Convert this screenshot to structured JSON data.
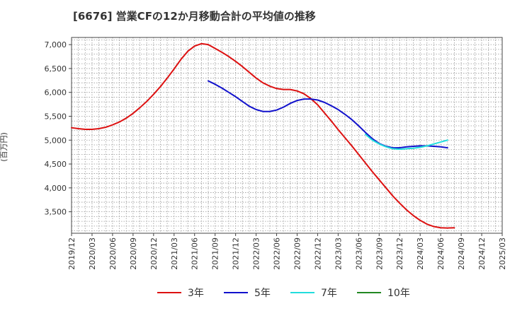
{
  "title": "[6676]  営業CFの12か月移動合計の平均値の推移",
  "y_unit": "(百万円)",
  "chart_data": {
    "type": "line",
    "title": "[6676]  営業CFの12か月移動合計の平均値の推移",
    "ylabel": "(百万円)",
    "xlabel": "",
    "ylim": [
      3050,
      7150
    ],
    "yticks": [
      3500,
      4000,
      4500,
      5000,
      5500,
      6000,
      6500,
      7000
    ],
    "ytick_labels": [
      "3,500",
      "4,000",
      "4,500",
      "5,000",
      "5,500",
      "6,000",
      "6,500",
      "7,000"
    ],
    "xticks": [
      "2019/12",
      "2020/03",
      "2020/06",
      "2020/09",
      "2020/12",
      "2021/03",
      "2021/06",
      "2021/09",
      "2021/12",
      "2022/03",
      "2022/06",
      "2022/09",
      "2022/12",
      "2023/03",
      "2023/06",
      "2023/09",
      "2023/12",
      "2024/03",
      "2024/06",
      "2024/09",
      "2024/12",
      "2025/03"
    ],
    "grid": true,
    "legend_position": "bottom",
    "series": [
      {
        "name": "3年",
        "color": "#dd1111",
        "points": [
          [
            "2019/12",
            5260
          ],
          [
            "2020/01",
            5240
          ],
          [
            "2020/02",
            5225
          ],
          [
            "2020/03",
            5225
          ],
          [
            "2020/04",
            5240
          ],
          [
            "2020/05",
            5270
          ],
          [
            "2020/06",
            5320
          ],
          [
            "2020/07",
            5380
          ],
          [
            "2020/08",
            5460
          ],
          [
            "2020/09",
            5560
          ],
          [
            "2020/10",
            5680
          ],
          [
            "2020/11",
            5810
          ],
          [
            "2020/12",
            5960
          ],
          [
            "2021/01",
            6120
          ],
          [
            "2021/02",
            6300
          ],
          [
            "2021/03",
            6490
          ],
          [
            "2021/04",
            6690
          ],
          [
            "2021/05",
            6860
          ],
          [
            "2021/06",
            6970
          ],
          [
            "2021/07",
            7020
          ],
          [
            "2021/08",
            7000
          ],
          [
            "2021/09",
            6920
          ],
          [
            "2021/10",
            6840
          ],
          [
            "2021/11",
            6750
          ],
          [
            "2021/12",
            6650
          ],
          [
            "2022/01",
            6540
          ],
          [
            "2022/02",
            6420
          ],
          [
            "2022/03",
            6300
          ],
          [
            "2022/04",
            6200
          ],
          [
            "2022/05",
            6130
          ],
          [
            "2022/06",
            6080
          ],
          [
            "2022/07",
            6060
          ],
          [
            "2022/08",
            6060
          ],
          [
            "2022/09",
            6030
          ],
          [
            "2022/10",
            5970
          ],
          [
            "2022/11",
            5870
          ],
          [
            "2022/12",
            5740
          ],
          [
            "2023/01",
            5570
          ],
          [
            "2023/02",
            5400
          ],
          [
            "2023/03",
            5220
          ],
          [
            "2023/04",
            5050
          ],
          [
            "2023/05",
            4880
          ],
          [
            "2023/06",
            4700
          ],
          [
            "2023/07",
            4520
          ],
          [
            "2023/08",
            4340
          ],
          [
            "2023/09",
            4170
          ],
          [
            "2023/10",
            4000
          ],
          [
            "2023/11",
            3830
          ],
          [
            "2023/12",
            3680
          ],
          [
            "2024/01",
            3540
          ],
          [
            "2024/02",
            3420
          ],
          [
            "2024/03",
            3320
          ],
          [
            "2024/04",
            3240
          ],
          [
            "2024/05",
            3190
          ],
          [
            "2024/06",
            3165
          ],
          [
            "2024/07",
            3160
          ],
          [
            "2024/08",
            3165
          ]
        ]
      },
      {
        "name": "5年",
        "color": "#1111cc",
        "points": [
          [
            "2021/08",
            6240
          ],
          [
            "2021/09",
            6170
          ],
          [
            "2021/10",
            6090
          ],
          [
            "2021/11",
            6000
          ],
          [
            "2021/12",
            5910
          ],
          [
            "2022/01",
            5810
          ],
          [
            "2022/02",
            5710
          ],
          [
            "2022/03",
            5640
          ],
          [
            "2022/04",
            5600
          ],
          [
            "2022/05",
            5600
          ],
          [
            "2022/06",
            5630
          ],
          [
            "2022/07",
            5690
          ],
          [
            "2022/08",
            5770
          ],
          [
            "2022/09",
            5830
          ],
          [
            "2022/10",
            5860
          ],
          [
            "2022/11",
            5860
          ],
          [
            "2022/12",
            5840
          ],
          [
            "2023/01",
            5790
          ],
          [
            "2023/02",
            5720
          ],
          [
            "2023/03",
            5640
          ],
          [
            "2023/04",
            5540
          ],
          [
            "2023/05",
            5430
          ],
          [
            "2023/06",
            5300
          ],
          [
            "2023/07",
            5160
          ],
          [
            "2023/08",
            5030
          ],
          [
            "2023/09",
            4930
          ],
          [
            "2023/10",
            4870
          ],
          [
            "2023/11",
            4840
          ],
          [
            "2023/12",
            4840
          ],
          [
            "2024/01",
            4860
          ],
          [
            "2024/02",
            4870
          ],
          [
            "2024/03",
            4880
          ],
          [
            "2024/04",
            4880
          ],
          [
            "2024/05",
            4870
          ],
          [
            "2024/06",
            4860
          ],
          [
            "2024/07",
            4840
          ]
        ]
      },
      {
        "name": "7年",
        "color": "#22dddd",
        "points": [
          [
            "2023/07",
            5120
          ],
          [
            "2023/08",
            5000
          ],
          [
            "2023/09",
            4920
          ],
          [
            "2023/10",
            4860
          ],
          [
            "2023/11",
            4820
          ],
          [
            "2023/12",
            4810
          ],
          [
            "2024/01",
            4820
          ],
          [
            "2024/02",
            4830
          ],
          [
            "2024/03",
            4850
          ],
          [
            "2024/04",
            4880
          ],
          [
            "2024/05",
            4920
          ],
          [
            "2024/06",
            4960
          ],
          [
            "2024/07",
            5000
          ]
        ]
      },
      {
        "name": "10年",
        "color": "#228822",
        "points": []
      }
    ]
  }
}
